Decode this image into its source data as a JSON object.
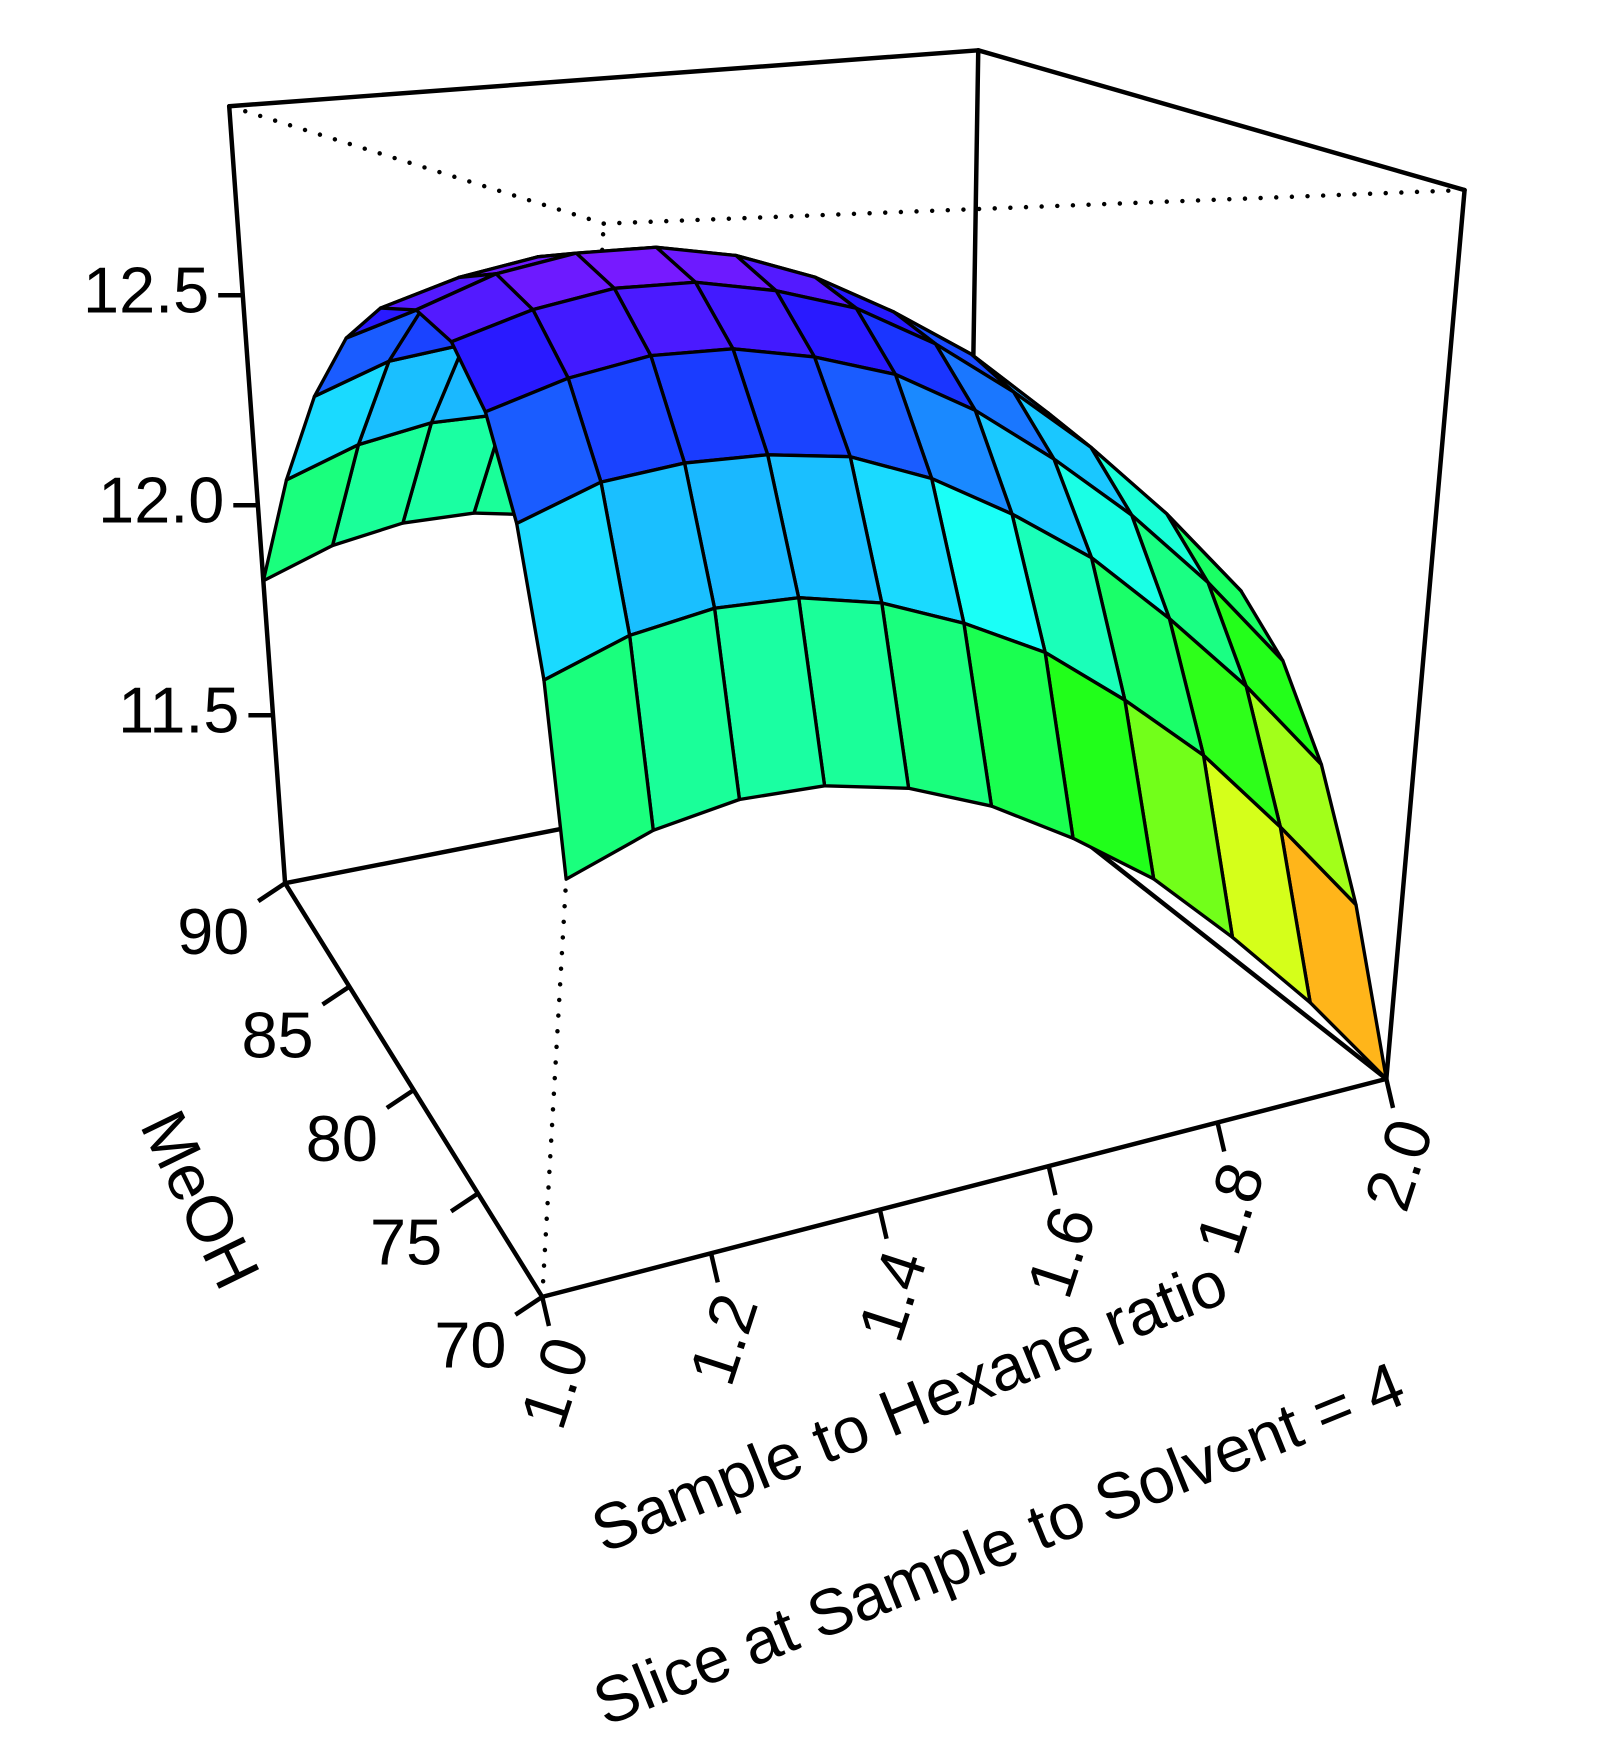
{
  "chart_data": {
    "type": "surface3d",
    "subtitle": "Slice at Sample to Solvent = 4",
    "xlabel": "Sample to Hexane ratio",
    "ylabel": "MeOH",
    "x": [
      1.0,
      1.1,
      1.2,
      1.3,
      1.4,
      1.5,
      1.6,
      1.7,
      1.8,
      1.9,
      2.0
    ],
    "y": [
      70,
      72,
      74,
      76,
      78,
      80,
      82,
      84,
      86,
      88,
      90
    ],
    "z": [
      [
        11.82,
        11.88,
        11.91,
        11.91,
        11.88,
        11.82,
        11.73,
        11.62,
        11.47,
        11.3,
        11.1
      ],
      [
        12.12,
        12.18,
        12.21,
        12.21,
        12.18,
        12.12,
        12.04,
        11.92,
        11.78,
        11.6,
        11.4
      ],
      [
        12.36,
        12.42,
        12.44,
        12.44,
        12.42,
        12.36,
        12.27,
        12.16,
        12.01,
        11.84,
        11.64
      ],
      [
        12.53,
        12.58,
        12.61,
        12.61,
        12.58,
        12.53,
        12.44,
        12.32,
        12.18,
        12.01,
        11.81
      ],
      [
        12.63,
        12.68,
        12.71,
        12.71,
        12.68,
        12.63,
        12.54,
        12.42,
        12.28,
        12.11,
        11.91
      ],
      [
        12.66,
        12.72,
        12.75,
        12.75,
        12.72,
        12.66,
        12.57,
        12.46,
        12.31,
        12.14,
        11.94
      ],
      [
        12.63,
        12.68,
        12.71,
        12.71,
        12.68,
        12.63,
        12.54,
        12.42,
        12.28,
        12.11,
        11.91
      ],
      [
        12.53,
        12.58,
        12.61,
        12.61,
        12.58,
        12.53,
        12.44,
        12.32,
        12.18,
        12.01,
        11.81
      ],
      [
        12.36,
        12.42,
        12.44,
        12.44,
        12.42,
        12.36,
        12.27,
        12.16,
        12.01,
        11.84,
        11.64
      ],
      [
        12.12,
        12.18,
        12.21,
        12.21,
        12.18,
        12.12,
        12.04,
        11.92,
        11.78,
        11.6,
        11.4
      ],
      [
        11.82,
        11.88,
        11.91,
        11.91,
        11.88,
        11.82,
        11.73,
        11.62,
        11.47,
        11.3,
        11.1
      ]
    ],
    "xlim": [
      1.0,
      2.0
    ],
    "xticks": [
      {
        "value": 1.0,
        "label": "1.0"
      },
      1.2,
      1.4,
      1.6,
      1.8,
      {
        "value": 2.0,
        "label": "2.0"
      }
    ],
    "ylim": [
      70,
      90
    ],
    "yticks": [
      70,
      75,
      80,
      85,
      90
    ],
    "zlim": [
      11.1,
      12.95
    ],
    "zticks": [
      11.5,
      {
        "value": 12.0,
        "label": "12.0"
      },
      12.5
    ],
    "colormap": "rainbow"
  }
}
